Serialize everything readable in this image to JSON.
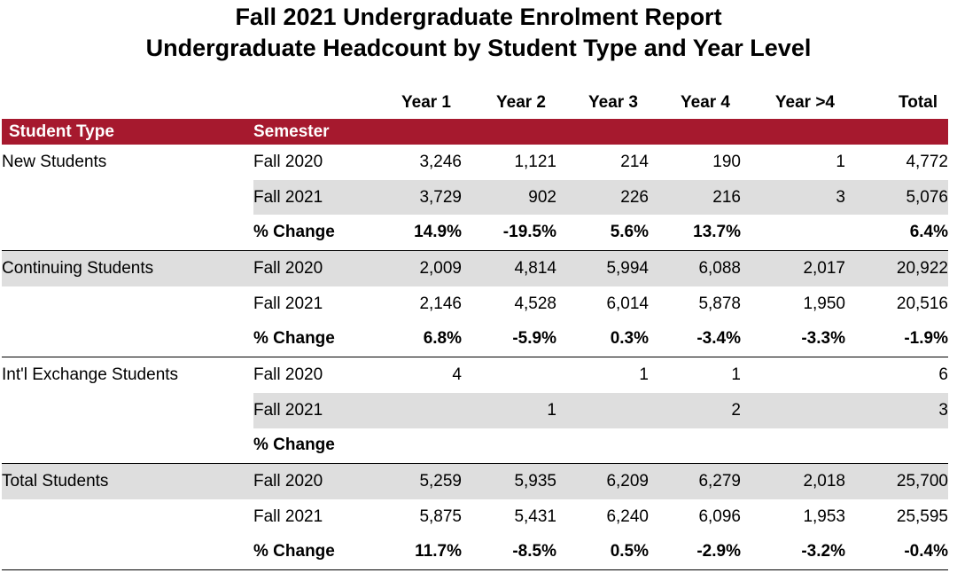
{
  "header": {
    "title": "Fall 2021 Undergraduate Enrolment Report",
    "subtitle": "Undergraduate Headcount by Student Type and Year Level"
  },
  "columns": {
    "student_type": "Student Type",
    "semester": "Semester",
    "year1": "Year 1",
    "year2": "Year 2",
    "year3": "Year 3",
    "year4": "Year 4",
    "year_gt4": "Year >4",
    "total": "Total"
  },
  "colors": {
    "header_band": "#a6192e",
    "row_shade": "#dedede"
  },
  "groups": [
    {
      "type": "New Students",
      "rows": [
        {
          "semester": "Fall 2020",
          "y1": "3,246",
          "y2": "1,121",
          "y3": "214",
          "y4": "190",
          "y5": "1",
          "total": "4,772"
        },
        {
          "semester": "Fall 2021",
          "y1": "3,729",
          "y2": "902",
          "y3": "226",
          "y4": "216",
          "y5": "3",
          "total": "5,076"
        },
        {
          "semester": "% Change",
          "y1": "14.9%",
          "y2": "-19.5%",
          "y3": "5.6%",
          "y4": "13.7%",
          "y5": "",
          "total": "6.4%"
        }
      ]
    },
    {
      "type": "Continuing Students",
      "rows": [
        {
          "semester": "Fall 2020",
          "y1": "2,009",
          "y2": "4,814",
          "y3": "5,994",
          "y4": "6,088",
          "y5": "2,017",
          "total": "20,922"
        },
        {
          "semester": "Fall 2021",
          "y1": "2,146",
          "y2": "4,528",
          "y3": "6,014",
          "y4": "5,878",
          "y5": "1,950",
          "total": "20,516"
        },
        {
          "semester": "% Change",
          "y1": "6.8%",
          "y2": "-5.9%",
          "y3": "0.3%",
          "y4": "-3.4%",
          "y5": "-3.3%",
          "total": "-1.9%"
        }
      ]
    },
    {
      "type": "Int'l Exchange Students",
      "rows": [
        {
          "semester": "Fall 2020",
          "y1": "4",
          "y2": "",
          "y3": "1",
          "y4": "1",
          "y5": "",
          "total": "6"
        },
        {
          "semester": "Fall 2021",
          "y1": "",
          "y2": "1",
          "y3": "",
          "y4": "2",
          "y5": "",
          "total": "3"
        },
        {
          "semester": "% Change",
          "y1": "",
          "y2": "",
          "y3": "",
          "y4": "",
          "y5": "",
          "total": ""
        }
      ]
    },
    {
      "type": "Total Students",
      "rows": [
        {
          "semester": "Fall 2020",
          "y1": "5,259",
          "y2": "5,935",
          "y3": "6,209",
          "y4": "6,279",
          "y5": "2,018",
          "total": "25,700"
        },
        {
          "semester": "Fall 2021",
          "y1": "5,875",
          "y2": "5,431",
          "y3": "6,240",
          "y4": "6,096",
          "y5": "1,953",
          "total": "25,595"
        },
        {
          "semester": "% Change",
          "y1": "11.7%",
          "y2": "-8.5%",
          "y3": "0.5%",
          "y4": "-2.9%",
          "y5": "-3.2%",
          "total": "-0.4%"
        }
      ]
    }
  ]
}
